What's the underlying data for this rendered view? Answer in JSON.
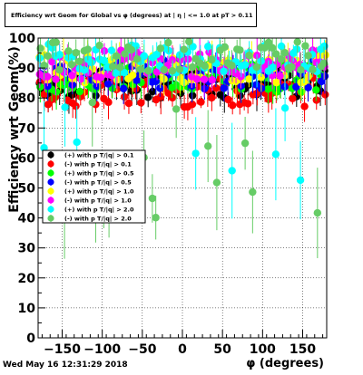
{
  "chart_data": {
    "type": "scatter",
    "title": "Efficiency wrt Geom for Global vs φ (degrees) at | η | <= 1.0 at pT > 0.11",
    "xlabel": "φ (degrees)",
    "ylabel": "Efficiency wrt Geom(%)",
    "xlim": [
      -180,
      180
    ],
    "ylim": [
      0,
      100
    ],
    "x_ticks": [
      "−150",
      "−100",
      "−50",
      "0",
      "50",
      "100",
      "150"
    ],
    "y_ticks": [
      "0",
      "10",
      "20",
      "30",
      "40",
      "50",
      "60",
      "70",
      "80",
      "90",
      "100"
    ],
    "grid": true,
    "legend_position": "left-middle",
    "series": [
      {
        "name": "(+) with p T/|q| > 0.1",
        "color": "#000000",
        "base": 85
      },
      {
        "name": "(-) with p T/|q| > 0.1",
        "color": "#ff0000",
        "base": 82
      },
      {
        "name": "(+) with p T/|q| > 0.5",
        "color": "#00ff00",
        "base": 87
      },
      {
        "name": "(-) with p T/|q| > 0.5",
        "color": "#0000ff",
        "base": 88
      },
      {
        "name": "(+) with p T/|q| > 1.0",
        "color": "#ffff00",
        "base": 90
      },
      {
        "name": "(-) with p T/|q| > 1.0",
        "color": "#ff00ff",
        "base": 91
      },
      {
        "name": "(+) with p T/|q| > 2.0",
        "color": "#00ffff",
        "base": 93
      },
      {
        "name": "(-) with p T/|q| > 2.0",
        "color": "#66cc66",
        "base": 94
      }
    ]
  },
  "footer": {
    "date": "Wed May 16 12:31:29 2018"
  }
}
